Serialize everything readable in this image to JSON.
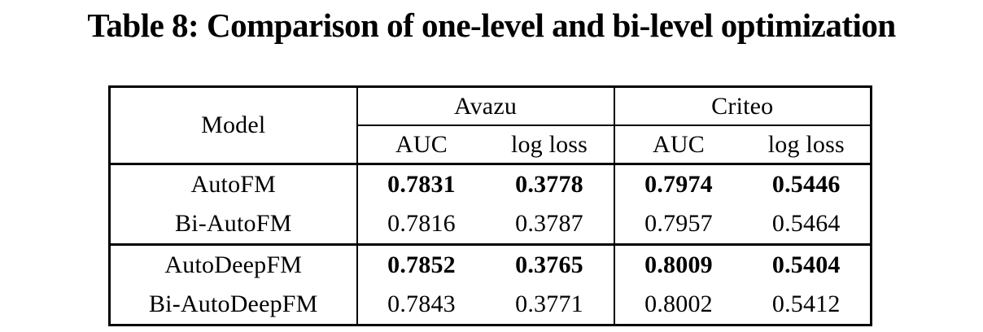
{
  "title": "Table 8: Comparison of one-level and bi-level optimization",
  "colors": {
    "background": "#ffffff",
    "text": "#000000",
    "border": "#000000"
  },
  "table": {
    "header": {
      "model_label": "Model",
      "groups": [
        {
          "label": "Avazu"
        },
        {
          "label": "Criteo"
        }
      ],
      "subheaders": [
        "AUC",
        "log loss",
        "AUC",
        "log loss"
      ]
    },
    "rows": [
      {
        "model": "AutoFM",
        "values": [
          "0.7831",
          "0.3778",
          "0.7974",
          "0.5446"
        ],
        "emphasis": true
      },
      {
        "model": "Bi-AutoFM",
        "values": [
          "0.7816",
          "0.3787",
          "0.7957",
          "0.5464"
        ],
        "emphasis": false
      },
      {
        "model": "AutoDeepFM",
        "values": [
          "0.7852",
          "0.3765",
          "0.8009",
          "0.5404"
        ],
        "emphasis": true
      },
      {
        "model": "Bi-AutoDeepFM",
        "values": [
          "0.7843",
          "0.3771",
          "0.8002",
          "0.5412"
        ],
        "emphasis": false
      }
    ]
  }
}
